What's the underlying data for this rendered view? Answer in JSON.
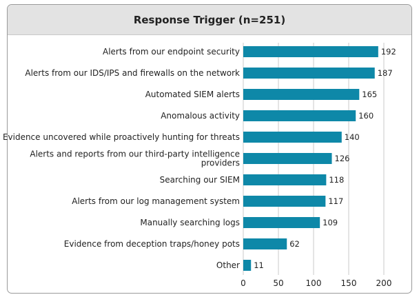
{
  "chart_data": {
    "type": "bar",
    "orientation": "horizontal",
    "title": "Response Trigger (n=251)",
    "categories": [
      [
        "Alerts from our endpoint security"
      ],
      [
        "Alerts from our IDS/IPS and firewalls on the network"
      ],
      [
        "Automated SIEM alerts"
      ],
      [
        "Anomalous activity"
      ],
      [
        "Evidence uncovered while proactively hunting for threats"
      ],
      [
        "Alerts and reports from our third-party intelligence",
        "providers"
      ],
      [
        "Searching our SIEM"
      ],
      [
        "Alerts from our log management system"
      ],
      [
        "Manually searching logs"
      ],
      [
        "Evidence from deception traps/honey pots"
      ],
      [
        "Other"
      ]
    ],
    "values": [
      192,
      187,
      165,
      160,
      140,
      126,
      118,
      117,
      109,
      62,
      11
    ],
    "xlim": [
      0,
      200
    ],
    "xticks": [
      0,
      50,
      100,
      150,
      200
    ],
    "grid": true,
    "bar_color": "#0e88a8",
    "grid_color": "#c9c9c9"
  }
}
